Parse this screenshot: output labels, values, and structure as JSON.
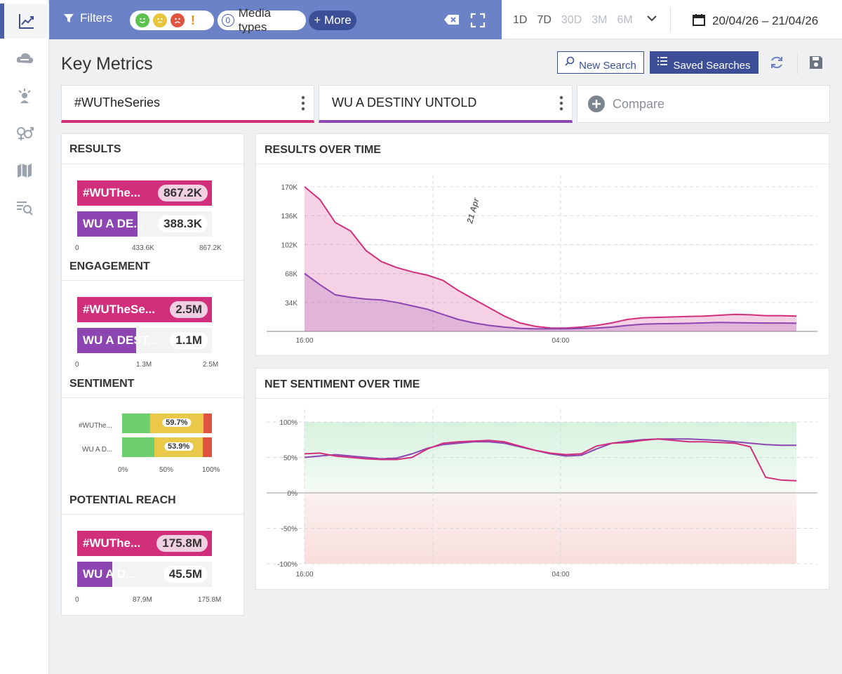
{
  "toolbar": {
    "filters_label": "Filters",
    "media_count": "0",
    "media_label": "Media types",
    "more_label": "+ More",
    "ranges": [
      "1D",
      "7D",
      "30D",
      "3M",
      "6M"
    ],
    "date_range": "20/04/26 – 21/04/26"
  },
  "header": {
    "title": "Key Metrics",
    "new_search": "New Search",
    "saved_searches": "Saved Searches"
  },
  "searches": {
    "primary": "#WUTheSeries",
    "secondary": "WU A DESTINY UNTOLD",
    "compare": "Compare"
  },
  "colors": {
    "primary": "#d12f7c",
    "secondary": "#8d45b2",
    "positive": "#6dcf6d",
    "neutral": "#ecc84a",
    "negative": "#e0533f"
  },
  "metrics": {
    "results": {
      "title": "RESULTS",
      "rows": [
        {
          "label": "#WUThe...",
          "value": "867.2K",
          "fraction": 1.0
        },
        {
          "label": "WU A DE...",
          "value": "388.3K",
          "fraction": 0.448
        }
      ],
      "ticks": [
        "0",
        "433.6K",
        "867.2K"
      ]
    },
    "engagement": {
      "title": "ENGAGEMENT",
      "rows": [
        {
          "label": "#WUTheSe...",
          "value": "2.5M",
          "fraction": 1.0
        },
        {
          "label": "WU A DEST...",
          "value": "1.1M",
          "fraction": 0.44
        }
      ],
      "ticks": [
        "0",
        "1.3M",
        "2.5M"
      ]
    },
    "sentiment": {
      "title": "SENTIMENT",
      "rows": [
        {
          "label": "#WUThe...",
          "positive": 31,
          "neutral": 59.7,
          "negative": 9.3,
          "neutral_label": "59.7%"
        },
        {
          "label": "WU A D...",
          "positive": 36,
          "neutral": 53.9,
          "negative": 10.1,
          "neutral_label": "53.9%"
        }
      ],
      "ticks": [
        "0%",
        "50%",
        "100%"
      ]
    },
    "reach": {
      "title": "POTENTIAL REACH",
      "rows": [
        {
          "label": "#WUThe...",
          "value": "175.8M",
          "fraction": 1.0
        },
        {
          "label": "WU A D...",
          "value": "45.5M",
          "fraction": 0.259
        }
      ],
      "ticks": [
        "0",
        "87.9M",
        "175.8M"
      ]
    }
  },
  "chart_data": [
    {
      "type": "area",
      "title": "RESULTS OVER TIME",
      "x_ticks": [
        "16:00",
        "04:00"
      ],
      "y_ticks": [
        "34K",
        "68K",
        "102K",
        "136K",
        "170K"
      ],
      "ylim": [
        0,
        170000
      ],
      "annotation": "21 Apr",
      "series": [
        {
          "name": "#WUTheSeries",
          "values": [
            170000,
            155000,
            128000,
            118000,
            95000,
            82000,
            75000,
            70000,
            66000,
            60000,
            48000,
            38000,
            28000,
            18000,
            10000,
            6000,
            4000,
            4000,
            5000,
            7000,
            10000,
            14000,
            16000,
            16500,
            17000,
            17500,
            18000,
            19000,
            20000,
            19500,
            18500,
            18500,
            18000
          ]
        },
        {
          "name": "WU A DESTINY UNTOLD",
          "values": [
            68000,
            55000,
            43000,
            40000,
            38000,
            37000,
            34000,
            30000,
            26000,
            20000,
            14000,
            10000,
            7000,
            5000,
            3500,
            3000,
            3000,
            3000,
            3500,
            4000,
            5000,
            7000,
            8500,
            9000,
            9200,
            9500,
            10000,
            10500,
            10200,
            10000,
            9800,
            9800,
            9600
          ]
        }
      ]
    },
    {
      "type": "line",
      "title": "NET SENTIMENT OVER TIME",
      "x_ticks": [
        "16:00",
        "04:00"
      ],
      "y_ticks": [
        "100%",
        "50%",
        "0%",
        "-50%",
        "-100%"
      ],
      "ylim": [
        -100,
        100
      ],
      "series": [
        {
          "name": "#WUTheSeries",
          "values": [
            55,
            56,
            52,
            50,
            48,
            47,
            47,
            50,
            62,
            70,
            72,
            73,
            74,
            72,
            66,
            60,
            56,
            54,
            55,
            66,
            70,
            71,
            74,
            76,
            74,
            72,
            72,
            71,
            70,
            65,
            22,
            18,
            17
          ]
        },
        {
          "name": "WU A DESTINY UNTOLD",
          "values": [
            50,
            52,
            54,
            52,
            50,
            48,
            49,
            55,
            63,
            68,
            70,
            72,
            72,
            70,
            65,
            60,
            55,
            52,
            53,
            62,
            70,
            73,
            75,
            76,
            76,
            76,
            75,
            74,
            72,
            70,
            68,
            67,
            67
          ]
        }
      ]
    }
  ]
}
